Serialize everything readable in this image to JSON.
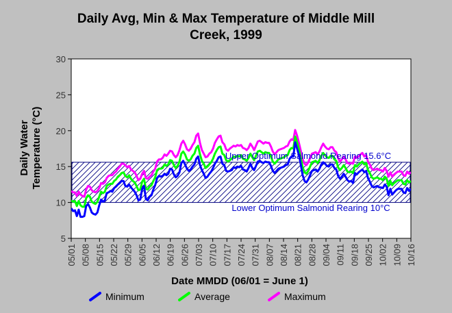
{
  "chart_data": {
    "type": "line",
    "title_line1": "Daily Avg, Min & Max Temperature of Middle Mill",
    "title_line2": "Creek, 1999",
    "xlabel": "Date MMDD (06/01 = June 1)",
    "ylabel_line1": "Daily Water",
    "ylabel_line2": "Temperature (°C)",
    "ylim": [
      5,
      30
    ],
    "yticks": [
      "5",
      "10",
      "15",
      "20",
      "25",
      "30"
    ],
    "grid": false,
    "legend_position": "bottom",
    "x_start": "05/01",
    "x_end": "10/16",
    "xticks": [
      "05/01",
      "05/08",
      "05/15",
      "05/22",
      "05/29",
      "06/05",
      "06/12",
      "06/19",
      "06/26",
      "07/03",
      "07/10",
      "07/17",
      "07/24",
      "07/31",
      "08/07",
      "08/14",
      "08/21",
      "08/28",
      "09/04",
      "09/11",
      "09/18",
      "09/25",
      "10/02",
      "10/09",
      "10/16"
    ],
    "band": {
      "low": 10,
      "high": 15.6,
      "upper_label": "Upper Optimum Salmonid Rearing 15.6°C",
      "lower_label": "Lower Optimum Salmonid Rearing 10°C",
      "color": "#000080"
    },
    "series": [
      {
        "name": "Minimum",
        "color": "#0000ff",
        "values": [
          9.2,
          8.8,
          8.9,
          8.1,
          9.0,
          8.0,
          8.0,
          8.1,
          9.5,
          9.8,
          9.3,
          8.6,
          8.4,
          8.3,
          8.6,
          9.6,
          10.4,
          10.1,
          10.3,
          11.3,
          11.4,
          11.6,
          11.5,
          12.0,
          12.2,
          12.5,
          12.7,
          13.0,
          13.0,
          12.3,
          12.2,
          12.5,
          12.1,
          11.8,
          11.5,
          11.0,
          10.3,
          10.4,
          11.9,
          12.3,
          10.5,
          10.3,
          10.8,
          11.0,
          11.8,
          12.4,
          13.4,
          13.7,
          13.6,
          13.7,
          14.0,
          13.8,
          14.0,
          14.7,
          14.6,
          13.9,
          13.5,
          13.7,
          14.2,
          15.5,
          15.8,
          15.3,
          14.7,
          14.4,
          14.6,
          15.0,
          15.3,
          16.1,
          16.4,
          15.2,
          14.5,
          14.0,
          13.4,
          13.6,
          14.0,
          14.3,
          14.8,
          15.4,
          15.8,
          16.3,
          16.4,
          15.4,
          15.2,
          14.4,
          14.3,
          14.4,
          14.5,
          14.9,
          14.8,
          15.0,
          14.9,
          15.1,
          14.6,
          14.5,
          14.3,
          14.8,
          15.4,
          14.8,
          14.5,
          15.1,
          15.7,
          15.8,
          15.6,
          15.5,
          15.7,
          15.6,
          15.6,
          15.1,
          14.4,
          14.1,
          14.4,
          14.7,
          14.8,
          14.9,
          15.0,
          15.2,
          15.3,
          16.1,
          16.4,
          16.4,
          18.4,
          17.5,
          16.6,
          15.3,
          13.8,
          13.0,
          12.8,
          13.2,
          13.8,
          14.4,
          14.5,
          14.6,
          14.3,
          14.7,
          15.3,
          15.6,
          15.4,
          15.1,
          15.0,
          15.3,
          15.3,
          14.8,
          14.6,
          13.7,
          13.3,
          13.6,
          14.0,
          13.6,
          13.1,
          12.9,
          13.0,
          12.7,
          14.1,
          13.9,
          14.2,
          14.4,
          14.6,
          14.2,
          14.4,
          13.4,
          12.9,
          12.3,
          12.1,
          12.2,
          12.3,
          12.1,
          12.1,
          12.0,
          12.5,
          12.2,
          11.0,
          11.9,
          11.1,
          11.4,
          11.7,
          11.9,
          11.9,
          11.9,
          11.4,
          11.3,
          12.0,
          11.6,
          11.9
        ]
      },
      {
        "name": "Average",
        "color": "#00ff00",
        "values": [
          10.3,
          10.1,
          10.2,
          9.5,
          10.2,
          9.6,
          9.4,
          9.4,
          10.6,
          11.0,
          10.8,
          10.1,
          9.9,
          9.8,
          10.1,
          10.8,
          11.5,
          11.3,
          11.5,
          12.3,
          12.5,
          12.6,
          12.6,
          13.0,
          13.2,
          13.6,
          13.8,
          14.1,
          14.2,
          13.7,
          13.5,
          13.8,
          13.3,
          13.0,
          12.8,
          12.3,
          11.7,
          11.8,
          12.9,
          13.3,
          11.9,
          11.8,
          12.2,
          12.4,
          13.0,
          13.5,
          14.5,
          14.7,
          14.7,
          14.8,
          15.3,
          15.1,
          15.3,
          15.9,
          15.8,
          15.2,
          14.8,
          15.1,
          15.7,
          16.8,
          17.1,
          16.7,
          16.0,
          15.8,
          16.0,
          16.5,
          16.8,
          17.6,
          17.9,
          16.7,
          15.8,
          15.4,
          14.8,
          15.0,
          15.3,
          15.6,
          16.1,
          16.8,
          17.3,
          17.7,
          17.8,
          16.8,
          16.6,
          15.9,
          15.7,
          15.9,
          16.1,
          16.4,
          16.3,
          16.5,
          16.4,
          16.6,
          16.1,
          16.0,
          15.8,
          16.2,
          16.8,
          16.3,
          15.9,
          16.5,
          17.1,
          17.2,
          17.0,
          16.8,
          17.0,
          16.9,
          16.9,
          16.4,
          15.7,
          15.4,
          15.7,
          16.0,
          16.1,
          16.2,
          16.3,
          16.5,
          16.6,
          17.3,
          17.6,
          17.5,
          19.2,
          18.4,
          17.4,
          16.2,
          14.9,
          14.2,
          14.0,
          14.4,
          15.0,
          15.6,
          15.7,
          15.8,
          15.5,
          15.9,
          16.5,
          16.9,
          16.6,
          16.3,
          16.2,
          16.5,
          16.5,
          16.0,
          15.8,
          14.9,
          14.5,
          14.8,
          15.2,
          14.8,
          14.3,
          14.2,
          14.3,
          14.1,
          15.2,
          15.0,
          15.3,
          15.5,
          15.7,
          15.3,
          15.5,
          14.5,
          14.1,
          13.5,
          13.3,
          13.4,
          13.5,
          13.3,
          13.3,
          13.1,
          13.6,
          13.3,
          12.3,
          13.0,
          12.4,
          12.7,
          12.9,
          13.1,
          13.1,
          13.1,
          12.6,
          12.5,
          13.1,
          12.8,
          13.0
        ]
      },
      {
        "name": "Maximum",
        "color": "#ff00ff",
        "values": [
          11.6,
          11.4,
          11.4,
          10.9,
          11.5,
          11.1,
          10.9,
          10.8,
          11.8,
          12.3,
          12.2,
          11.7,
          11.5,
          11.4,
          11.6,
          12.0,
          12.7,
          12.6,
          12.8,
          13.4,
          13.7,
          13.8,
          13.8,
          14.1,
          14.3,
          14.7,
          15.0,
          15.4,
          15.4,
          15.2,
          14.9,
          15.1,
          14.6,
          14.4,
          14.2,
          13.7,
          13.1,
          13.3,
          14.0,
          14.4,
          13.4,
          13.3,
          13.6,
          13.8,
          14.3,
          14.7,
          15.7,
          16.0,
          16.0,
          16.2,
          16.7,
          16.5,
          16.8,
          17.2,
          17.1,
          16.6,
          16.3,
          16.6,
          17.3,
          18.2,
          18.6,
          18.1,
          17.4,
          17.2,
          17.5,
          18.0,
          18.4,
          19.3,
          19.6,
          18.3,
          17.3,
          16.8,
          16.3,
          16.4,
          16.8,
          17.0,
          17.5,
          18.3,
          18.8,
          19.2,
          19.3,
          18.4,
          18.1,
          17.4,
          17.2,
          17.5,
          17.7,
          17.9,
          17.8,
          18.0,
          17.9,
          18.0,
          17.6,
          17.5,
          17.3,
          17.6,
          18.2,
          17.8,
          17.3,
          17.9,
          18.5,
          18.6,
          18.4,
          18.2,
          18.4,
          18.3,
          18.3,
          17.8,
          17.1,
          16.7,
          17.0,
          17.3,
          17.4,
          17.5,
          17.6,
          17.8,
          17.9,
          18.5,
          18.8,
          18.7,
          20.1,
          19.3,
          18.3,
          17.2,
          16.0,
          15.4,
          15.2,
          15.6,
          16.2,
          16.8,
          16.9,
          17.0,
          16.7,
          17.1,
          17.7,
          18.2,
          17.8,
          17.5,
          17.4,
          17.7,
          17.7,
          17.2,
          17.0,
          16.2,
          15.7,
          16.0,
          16.4,
          16.0,
          15.5,
          15.4,
          15.5,
          15.4,
          16.4,
          16.2,
          16.4,
          16.7,
          16.9,
          16.4,
          16.6,
          15.7,
          15.3,
          14.7,
          14.5,
          14.6,
          14.7,
          14.5,
          14.5,
          14.3,
          14.8,
          14.4,
          13.6,
          14.2,
          13.6,
          13.9,
          14.1,
          14.3,
          14.3,
          14.3,
          13.8,
          13.7,
          14.3,
          14.0,
          14.2
        ]
      }
    ]
  }
}
